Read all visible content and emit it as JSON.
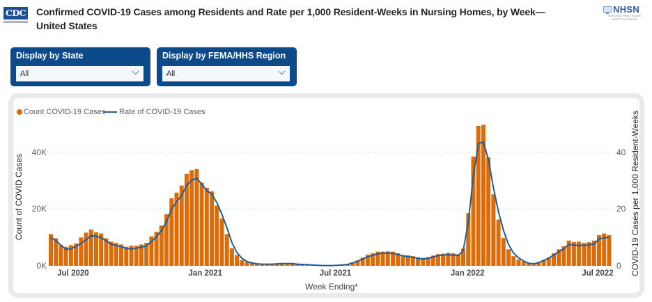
{
  "header": {
    "logo_left": "CDC",
    "title_lines": [
      "Confirmed COVID-19 Cases among Residents and Rate per 1,000 Resident-Weeks in Nursing Homes, by Week—",
      "United States"
    ],
    "logo_right": {
      "name": "NHSN",
      "subtitle_lines": [
        "NATIONAL HEALTHCARE",
        "SAFETY NETWORK"
      ]
    }
  },
  "filters": [
    {
      "label": "Display by State",
      "value": "All",
      "icon": "chevron-down-icon"
    },
    {
      "label": "Display by FEMA/HHS Region",
      "value": "All",
      "icon": "chevron-down-icon"
    }
  ],
  "chart_data": {
    "type": "bar",
    "title": "",
    "grid": true,
    "legend": {
      "position": "top-left",
      "items": [
        {
          "label": "Count COVID-19 Cases",
          "marker": "dot",
          "color": "#dd6b07"
        },
        {
          "label": "Rate of COVID-19 Cases",
          "marker": "line",
          "color": "#1f5c99"
        }
      ]
    },
    "xlabel": "Week Ending*",
    "x_ticks": [
      {
        "label": "Jul 2020",
        "date": "2020-07-01"
      },
      {
        "label": "Jan 2021",
        "date": "2021-01-01"
      },
      {
        "label": "Jul 2021",
        "date": "2021-07-01"
      },
      {
        "label": "Jan 2022",
        "date": "2022-01-01"
      },
      {
        "label": "Jul 2022",
        "date": "2022-07-01"
      }
    ],
    "y_left": {
      "label": "Count of COVID Cases",
      "range": [
        0,
        52000
      ],
      "ticks": [
        {
          "value": 0,
          "label": "0K"
        },
        {
          "value": 20000,
          "label": "20K"
        },
        {
          "value": 40000,
          "label": "40K"
        }
      ]
    },
    "y_right": {
      "label": "COVID-19 Cases per 1,000 Resident-Weeks",
      "range": [
        0,
        52
      ],
      "ticks": [
        {
          "value": 0,
          "label": "0"
        },
        {
          "value": 20,
          "label": "20"
        },
        {
          "value": 40,
          "label": "40"
        }
      ]
    },
    "x": [
      "2020-05-31",
      "2020-06-07",
      "2020-06-14",
      "2020-06-21",
      "2020-06-28",
      "2020-07-05",
      "2020-07-12",
      "2020-07-19",
      "2020-07-26",
      "2020-08-02",
      "2020-08-09",
      "2020-08-16",
      "2020-08-23",
      "2020-08-30",
      "2020-09-06",
      "2020-09-13",
      "2020-09-20",
      "2020-09-27",
      "2020-10-04",
      "2020-10-11",
      "2020-10-18",
      "2020-10-25",
      "2020-11-01",
      "2020-11-08",
      "2020-11-15",
      "2020-11-22",
      "2020-11-29",
      "2020-12-06",
      "2020-12-13",
      "2020-12-20",
      "2020-12-27",
      "2021-01-03",
      "2021-01-10",
      "2021-01-17",
      "2021-01-24",
      "2021-01-31",
      "2021-02-07",
      "2021-02-14",
      "2021-02-21",
      "2021-02-28",
      "2021-03-07",
      "2021-03-14",
      "2021-03-21",
      "2021-03-28",
      "2021-04-04",
      "2021-04-11",
      "2021-04-18",
      "2021-04-25",
      "2021-05-02",
      "2021-05-09",
      "2021-05-16",
      "2021-05-23",
      "2021-05-30",
      "2021-06-06",
      "2021-06-13",
      "2021-06-20",
      "2021-06-27",
      "2021-07-04",
      "2021-07-11",
      "2021-07-18",
      "2021-07-25",
      "2021-08-01",
      "2021-08-08",
      "2021-08-15",
      "2021-08-22",
      "2021-08-29",
      "2021-09-05",
      "2021-09-12",
      "2021-09-19",
      "2021-09-26",
      "2021-10-03",
      "2021-10-10",
      "2021-10-17",
      "2021-10-24",
      "2021-10-31",
      "2021-11-07",
      "2021-11-14",
      "2021-11-21",
      "2021-11-28",
      "2021-12-05",
      "2021-12-12",
      "2021-12-19",
      "2021-12-26",
      "2022-01-02",
      "2022-01-09",
      "2022-01-16",
      "2022-01-23",
      "2022-01-30",
      "2022-02-06",
      "2022-02-13",
      "2022-02-20",
      "2022-02-27",
      "2022-03-06",
      "2022-03-13",
      "2022-03-20",
      "2022-03-27",
      "2022-04-03",
      "2022-04-10",
      "2022-04-17",
      "2022-04-24",
      "2022-05-01",
      "2022-05-08",
      "2022-05-15",
      "2022-05-22",
      "2022-05-29",
      "2022-06-05",
      "2022-06-12",
      "2022-06-19",
      "2022-06-26",
      "2022-07-03",
      "2022-07-10",
      "2022-07-17"
    ],
    "series": [
      {
        "name": "Count COVID-19 Cases",
        "type": "bar",
        "axis": "left",
        "color": "#dd6b07",
        "values": [
          11200,
          9700,
          7300,
          6700,
          7300,
          7900,
          10000,
          11700,
          12800,
          11800,
          11400,
          9700,
          8500,
          8100,
          7500,
          6700,
          7100,
          7100,
          7500,
          8100,
          10400,
          12000,
          14200,
          18200,
          23800,
          25800,
          28300,
          32400,
          33700,
          34100,
          29300,
          27500,
          26200,
          21200,
          16700,
          11200,
          6200,
          3800,
          2000,
          1300,
          900,
          700,
          700,
          700,
          700,
          800,
          900,
          800,
          900,
          500,
          500,
          500,
          300,
          200,
          100,
          100,
          100,
          200,
          300,
          500,
          1200,
          1900,
          2900,
          3900,
          4400,
          5000,
          5000,
          5100,
          5000,
          4400,
          3800,
          3700,
          3400,
          3000,
          2800,
          3100,
          3600,
          4100,
          4300,
          4600,
          4400,
          4100,
          6100,
          18600,
          38500,
          49300,
          49700,
          38200,
          25200,
          16300,
          9800,
          5800,
          3400,
          2200,
          1500,
          900,
          900,
          1300,
          2100,
          3000,
          4400,
          5800,
          6900,
          8900,
          8400,
          8500,
          8100,
          8300,
          8900,
          10800,
          11400,
          10800
        ]
      },
      {
        "name": "Rate of COVID-19 Cases",
        "type": "line",
        "axis": "right",
        "color": "#1f5c99",
        "values": [
          9.9,
          8.9,
          7.3,
          5.8,
          6.0,
          6.8,
          7.9,
          9.2,
          10.6,
          10.4,
          9.9,
          8.8,
          7.6,
          7.1,
          6.8,
          6.1,
          5.9,
          6.2,
          6.6,
          7.0,
          8.5,
          10.3,
          12.4,
          15.5,
          20.0,
          22.6,
          24.8,
          28.3,
          30.2,
          30.9,
          28.8,
          26.5,
          25.3,
          22.3,
          18.2,
          13.5,
          8.2,
          4.7,
          2.6,
          1.5,
          1.0,
          0.7,
          0.6,
          0.6,
          0.6,
          0.7,
          0.8,
          0.8,
          0.8,
          0.6,
          0.5,
          0.4,
          0.3,
          0.2,
          0.1,
          0.1,
          0.1,
          0.2,
          0.3,
          0.5,
          1.0,
          1.6,
          2.4,
          3.2,
          3.7,
          4.2,
          4.5,
          4.5,
          4.4,
          4.0,
          3.5,
          3.2,
          3.0,
          2.6,
          2.4,
          2.6,
          3.1,
          3.6,
          3.8,
          3.9,
          3.8,
          3.6,
          5.4,
          15.5,
          31.5,
          43.0,
          43.7,
          37.5,
          27.5,
          19.0,
          12.5,
          7.5,
          4.5,
          2.8,
          1.7,
          0.9,
          0.7,
          1.1,
          1.9,
          2.7,
          3.8,
          5.0,
          6.0,
          7.5,
          7.3,
          7.2,
          7.2,
          7.3,
          7.7,
          9.4,
          9.9,
          10.0
        ]
      }
    ]
  }
}
